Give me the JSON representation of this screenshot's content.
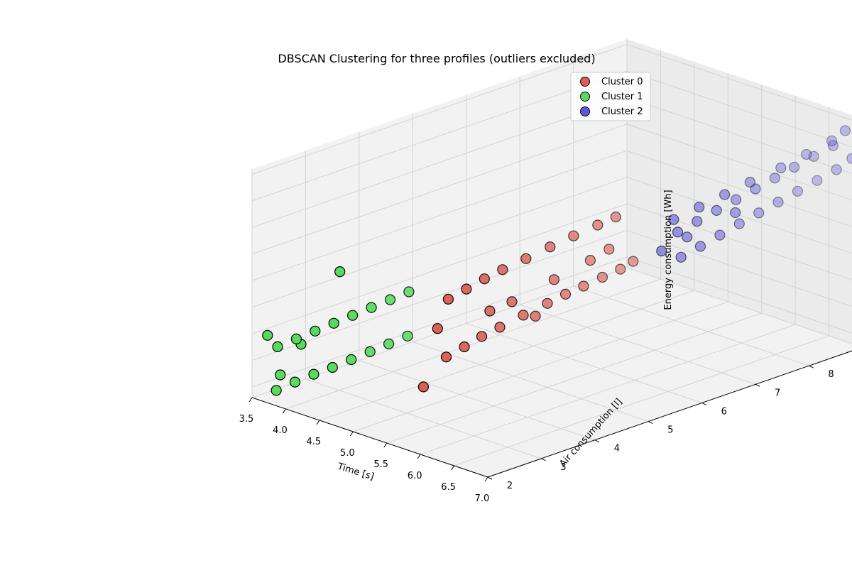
{
  "chart_data": {
    "type": "scatter",
    "title": "DBSCAN Clustering for three profiles (outliers excluded)",
    "xlabel": "Time [s]",
    "ylabel": "Air consumption [l]",
    "zlabel": "Energy consumption [Wh]",
    "xlim": [
      3.5,
      7.0
    ],
    "ylim": [
      2,
      9
    ],
    "zlim": [
      0.038,
      0.081
    ],
    "xticks": [
      "3.5",
      "4.0",
      "4.5",
      "5.0",
      "5.5",
      "6.0",
      "6.5",
      "7.0"
    ],
    "yticks": [
      "2",
      "3",
      "4",
      "5",
      "6",
      "7",
      "8",
      "9"
    ],
    "zticks": [
      "0.040",
      "0.045",
      "0.050",
      "0.055",
      "0.060",
      "0.065",
      "0.070",
      "0.075",
      "0.080"
    ],
    "grid": true,
    "legend_position": "top-right",
    "series": [
      {
        "name": "Cluster 0",
        "color": "#db5f57",
        "points": [
          [
            5.35,
            3.3,
            0.049
          ],
          [
            5.38,
            3.6,
            0.05
          ],
          [
            5.4,
            3.9,
            0.051
          ],
          [
            5.43,
            4.2,
            0.0518
          ],
          [
            5.46,
            4.6,
            0.0528
          ],
          [
            5.5,
            5.0,
            0.0538
          ],
          [
            5.53,
            5.3,
            0.0546
          ],
          [
            5.56,
            5.6,
            0.0552
          ],
          [
            5.6,
            5.9,
            0.056
          ],
          [
            5.63,
            6.2,
            0.0566
          ],
          [
            5.38,
            3.3,
            0.06
          ],
          [
            5.41,
            3.6,
            0.061
          ],
          [
            5.44,
            3.9,
            0.062
          ],
          [
            5.47,
            4.2,
            0.0628
          ],
          [
            5.5,
            4.6,
            0.0636
          ],
          [
            5.54,
            5.0,
            0.0646
          ],
          [
            5.57,
            5.4,
            0.0654
          ],
          [
            5.61,
            5.8,
            0.0662
          ],
          [
            5.64,
            6.1,
            0.0668
          ],
          [
            5.25,
            3.0,
            0.044
          ],
          [
            5.3,
            3.2,
            0.0545
          ],
          [
            5.45,
            4.4,
            0.056
          ],
          [
            5.52,
            5.1,
            0.058
          ],
          [
            5.58,
            5.7,
            0.0598
          ],
          [
            5.62,
            6.0,
            0.061
          ],
          [
            5.48,
            4.8,
            0.052
          ],
          [
            5.44,
            4.0,
            0.0556
          ],
          [
            5.66,
            6.4,
            0.0575
          ]
        ]
      },
      {
        "name": "Cluster 1",
        "color": "#57db5f",
        "points": [
          [
            3.7,
            2.2,
            0.0395
          ],
          [
            3.74,
            2.5,
            0.0402
          ],
          [
            3.78,
            2.8,
            0.0408
          ],
          [
            3.82,
            3.1,
            0.0412
          ],
          [
            3.86,
            3.4,
            0.0418
          ],
          [
            3.9,
            3.7,
            0.0424
          ],
          [
            3.94,
            4.0,
            0.043
          ],
          [
            3.98,
            4.3,
            0.0436
          ],
          [
            3.72,
            2.2,
            0.0478
          ],
          [
            3.76,
            2.5,
            0.0484
          ],
          [
            3.8,
            2.8,
            0.049
          ],
          [
            3.84,
            3.1,
            0.0496
          ],
          [
            3.88,
            3.4,
            0.0502
          ],
          [
            3.92,
            3.7,
            0.0508
          ],
          [
            3.96,
            4.0,
            0.0514
          ],
          [
            4.0,
            4.3,
            0.052
          ],
          [
            3.85,
            3.2,
            0.059
          ],
          [
            3.65,
            2.1,
            0.05
          ],
          [
            3.68,
            2.3,
            0.042
          ],
          [
            3.75,
            2.6,
            0.047
          ]
        ]
      },
      {
        "name": "Cluster 2",
        "color": "#5f57db",
        "points": [
          [
            6.45,
            6.3,
            0.062
          ],
          [
            6.5,
            6.6,
            0.0632
          ],
          [
            6.55,
            6.9,
            0.0645
          ],
          [
            6.6,
            7.2,
            0.0658
          ],
          [
            6.65,
            7.5,
            0.067
          ],
          [
            6.7,
            7.8,
            0.0682
          ],
          [
            6.75,
            8.1,
            0.0694
          ],
          [
            6.8,
            8.4,
            0.0706
          ],
          [
            6.85,
            8.7,
            0.0718
          ],
          [
            6.48,
            6.2,
            0.0672
          ],
          [
            6.53,
            6.5,
            0.0684
          ],
          [
            6.58,
            6.8,
            0.0696
          ],
          [
            6.63,
            7.1,
            0.0708
          ],
          [
            6.68,
            7.4,
            0.072
          ],
          [
            6.73,
            7.7,
            0.0732
          ],
          [
            6.78,
            8.0,
            0.0744
          ],
          [
            6.83,
            8.3,
            0.0756
          ],
          [
            6.88,
            8.6,
            0.0768
          ],
          [
            6.5,
            6.1,
            0.07
          ],
          [
            6.56,
            6.5,
            0.0712
          ],
          [
            6.62,
            6.9,
            0.0724
          ],
          [
            6.68,
            7.3,
            0.0736
          ],
          [
            6.74,
            7.8,
            0.0748
          ],
          [
            6.8,
            8.2,
            0.0762
          ],
          [
            6.86,
            8.6,
            0.0776
          ],
          [
            6.9,
            8.8,
            0.079
          ],
          [
            6.4,
            6.0,
            0.064
          ],
          [
            6.46,
            6.4,
            0.0655
          ],
          [
            6.92,
            8.9,
            0.0735
          ],
          [
            6.7,
            7.0,
            0.069
          ]
        ]
      }
    ]
  }
}
